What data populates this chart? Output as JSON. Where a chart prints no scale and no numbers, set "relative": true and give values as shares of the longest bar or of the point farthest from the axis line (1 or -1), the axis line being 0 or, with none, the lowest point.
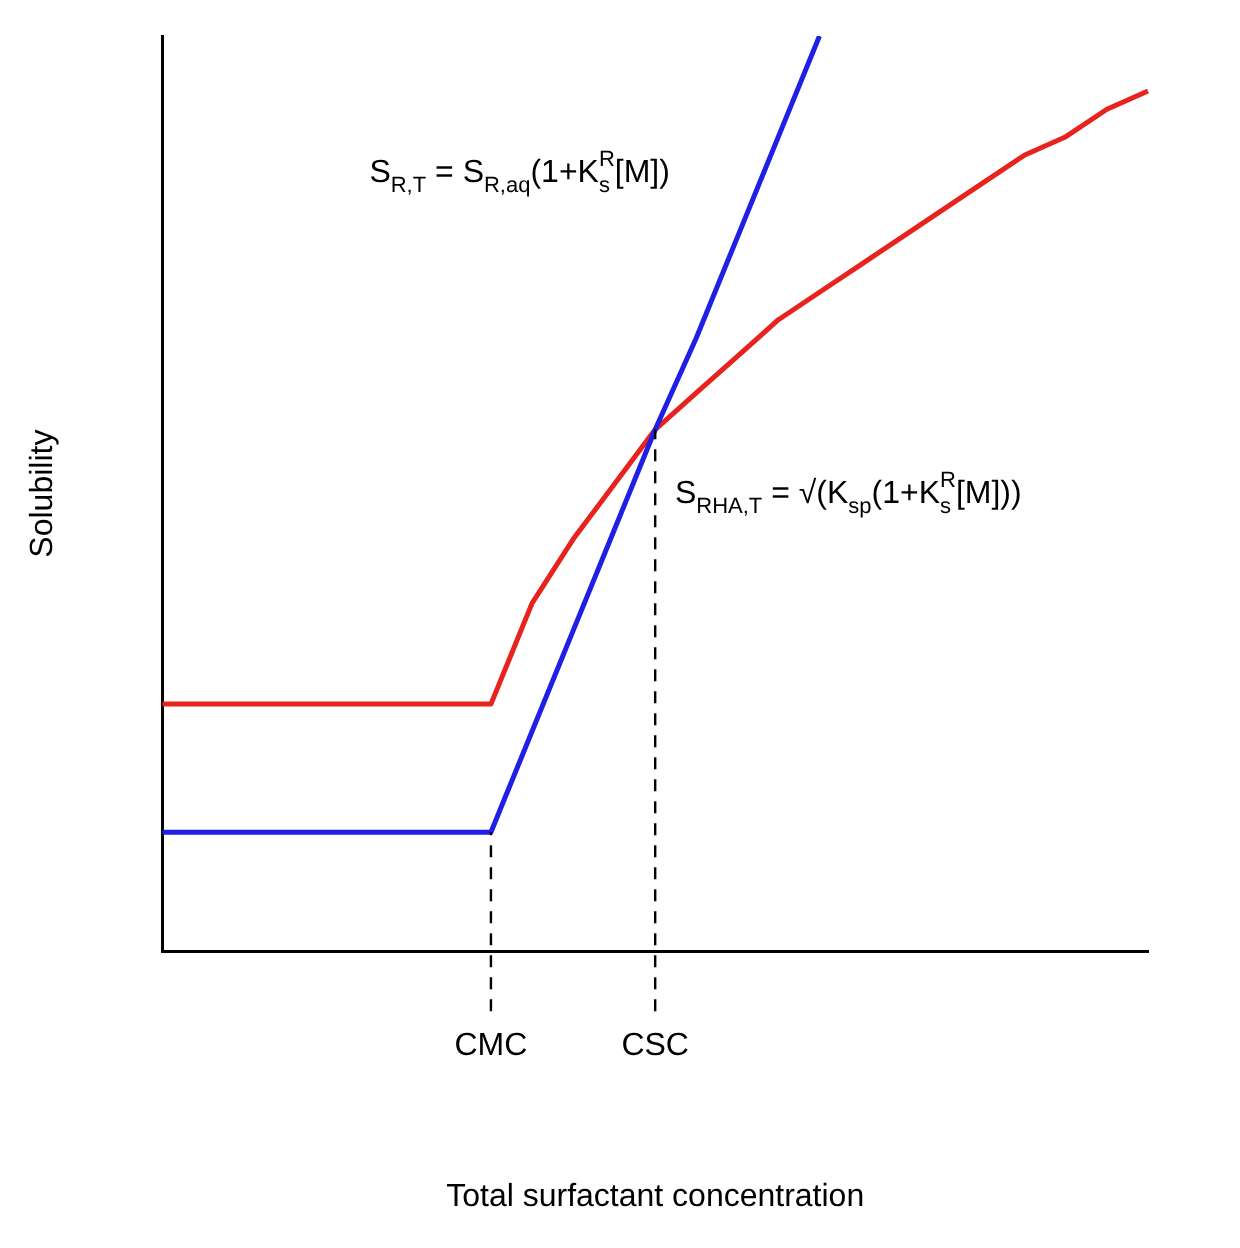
{
  "chart_data": {
    "type": "line",
    "relative": true,
    "xlabel": "Total surfactant concentration",
    "ylabel": "Solubility",
    "categories": [
      null,
      null,
      null,
      null,
      null,
      null,
      null,
      null,
      "CMC",
      null,
      null,
      null,
      "CSC",
      null,
      null,
      null,
      null,
      null,
      null,
      null,
      null,
      null,
      null,
      null,
      null
    ],
    "series": [
      {
        "color": "#1f1fe6",
        "values": [
          0.13,
          0.13,
          0.13,
          0.13,
          0.13,
          0.13,
          0.13,
          0.13,
          0.13,
          0.24,
          0.35,
          0.46,
          0.57,
          0.67,
          0.78,
          0.89,
          1.0,
          null,
          null,
          null,
          null,
          null,
          null,
          null,
          null
        ]
      },
      {
        "color": "#e8221c",
        "values": [
          0.27,
          0.27,
          0.27,
          0.27,
          0.27,
          0.27,
          0.27,
          0.27,
          0.27,
          0.38,
          0.45,
          0.51,
          0.57,
          0.61,
          0.65,
          0.69,
          0.72,
          0.75,
          0.78,
          0.81,
          0.84,
          0.87,
          0.89,
          0.92,
          0.94
        ]
      }
    ],
    "ref_lines": [
      {
        "axis": "x",
        "value": "CMC",
        "line_style": "dashed",
        "color": "#000000"
      },
      {
        "axis": "x",
        "value": "CSC",
        "line_style": "dashed",
        "color": "#000000"
      }
    ],
    "annotations": [
      "S$_{R,T}$ = S$_{R,aq}$(1+K$_{s}$$^{R}$[M])",
      "S$_{RHA,T}$ = √(K$_{sp}$(1+K$_{s}$$^{R}$[M]))"
    ],
    "tick_labels": "x",
    "grid": false,
    "legend": false,
    "marker": "none",
    "line_style": "solid"
  }
}
